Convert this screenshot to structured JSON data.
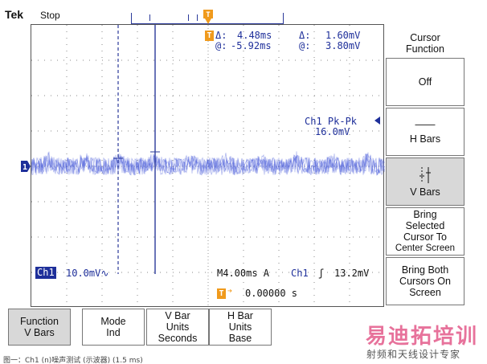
{
  "header": {
    "brand": "Tek",
    "run_state": "Stop"
  },
  "cursor_readout": {
    "delta_label": "Δ:",
    "time_delta": "4.48ms",
    "volt_delta": "1.60mV",
    "at_label": "@:",
    "time_at": "-5.92ms",
    "volt_at": "3.80mV",
    "cursor_marker": "T"
  },
  "measurement": {
    "label": "Ch1 Pk-Pk",
    "value": "16.0mV"
  },
  "channel": {
    "badge": "Ch1",
    "scale": "10.0mV∿",
    "ground_marker": "1"
  },
  "timebase": {
    "text": "M4.00ms A",
    "trigger_source": "Ch1",
    "trigger_slope": "ʃ",
    "trigger_level": "13.2mV",
    "trigger_marker": "T",
    "trigger_arrow": "➔",
    "position_value": "0.00000 s"
  },
  "side_menu": {
    "title_line1": "Cursor",
    "title_line2": "Function",
    "off": "Off",
    "hbars_line": "——",
    "hbars_label": "H Bars",
    "vbars_label": "V Bars",
    "bring_selected_1": "Bring",
    "bring_selected_2": "Selected",
    "bring_selected_3": "Cursor To",
    "bring_selected_4": "Center Screen",
    "bring_both_1": "Bring Both",
    "bring_both_2": "Cursors On",
    "bring_both_3": "Screen"
  },
  "bottom_menu": {
    "function_1": "Function",
    "function_2": "V Bars",
    "mode_1": "Mode",
    "mode_2": "Ind",
    "vbar_units_1": "V Bar",
    "vbar_units_2": "Units",
    "vbar_units_3": "Seconds",
    "hbar_units_1": "H Bar",
    "hbar_units_2": "Units",
    "hbar_units_3": "Base"
  },
  "watermark": {
    "main": "易迪拓培训",
    "sub": "射频和天线设计专家"
  },
  "caption": "图一：Ch1 (n)噪声测试 (示波器) (1.5 ms)",
  "colors": {
    "trace": "#3b4fd8",
    "readout": "#1e2f9a",
    "marker": "#f09a1c",
    "selected_button": "#d8d8d8"
  }
}
